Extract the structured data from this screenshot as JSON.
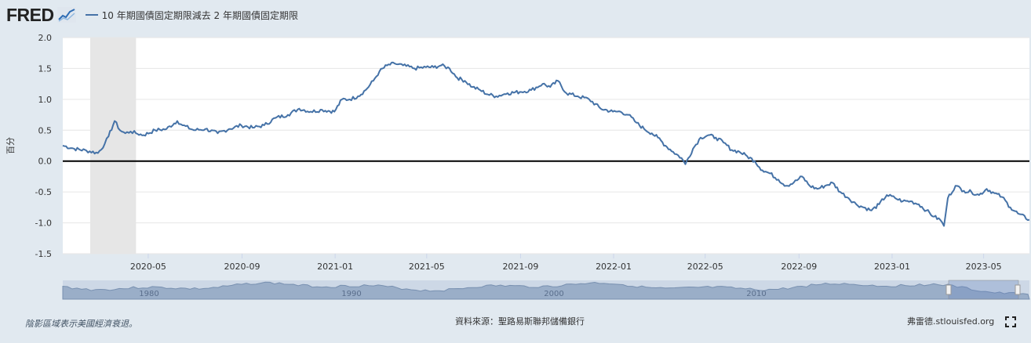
{
  "header": {
    "logo_text": "FRED",
    "logo_icon": "line-chart-icon",
    "series_title": "10 年期國債固定期限減去 2 年期國債固定期限"
  },
  "footer": {
    "recession_note": "陰影區域表示美國經濟衰退。",
    "source": "資料來源：聖路易斯聯邦儲備銀行",
    "site": "弗雷德.stlouisfed.org",
    "fullscreen_icon": "fullscreen-icon"
  },
  "colors": {
    "series": "#4572a7",
    "recession": "#e6e6e6",
    "zero_line": "#000000",
    "navigator_fill": "#9aaec8"
  },
  "chart_data": {
    "type": "line",
    "ylabel": "百分",
    "ylim": [
      -1.5,
      2.0
    ],
    "yticks": [
      "2.0",
      "1.5",
      "1.0",
      "0.5",
      "0.0",
      "-0.5",
      "-1.0",
      "-1.5"
    ],
    "xticks": [
      "2020-05",
      "2020-09",
      "2021-01",
      "2021-05",
      "2021-09",
      "2022-01",
      "2022-05",
      "2022-09",
      "2023-01",
      "2023-05"
    ],
    "xlim": [
      "2020-01-10",
      "2023-06-30"
    ],
    "grid": true,
    "legend": "top-left",
    "recession": {
      "start": "2020-02-15",
      "end": "2020-04-15"
    },
    "navigator_labels": [
      "1980",
      "1990",
      "2000",
      "2010"
    ],
    "series": [
      {
        "name": "10 年期國債固定期限減去 2 年期國債固定期限",
        "x": [
          "2020-01-10",
          "2020-01-25",
          "2020-02-10",
          "2020-02-25",
          "2020-03-05",
          "2020-03-10",
          "2020-03-18",
          "2020-03-25",
          "2020-04-01",
          "2020-04-08",
          "2020-04-15",
          "2020-04-25",
          "2020-05-10",
          "2020-05-25",
          "2020-06-08",
          "2020-06-15",
          "2020-06-30",
          "2020-07-15",
          "2020-07-31",
          "2020-08-15",
          "2020-08-31",
          "2020-09-15",
          "2020-09-30",
          "2020-10-15",
          "2020-10-31",
          "2020-11-15",
          "2020-11-30",
          "2020-12-15",
          "2020-12-31",
          "2021-01-10",
          "2021-01-20",
          "2021-01-31",
          "2021-02-10",
          "2021-02-20",
          "2021-02-28",
          "2021-03-10",
          "2021-03-20",
          "2021-03-31",
          "2021-04-15",
          "2021-04-30",
          "2021-05-10",
          "2021-05-20",
          "2021-05-31",
          "2021-06-10",
          "2021-06-20",
          "2021-06-30",
          "2021-07-10",
          "2021-07-20",
          "2021-07-31",
          "2021-08-15",
          "2021-08-31",
          "2021-09-15",
          "2021-09-30",
          "2021-10-10",
          "2021-10-20",
          "2021-10-31",
          "2021-11-15",
          "2021-11-30",
          "2021-12-15",
          "2021-12-31",
          "2022-01-10",
          "2022-01-20",
          "2022-01-31",
          "2022-02-10",
          "2022-02-20",
          "2022-02-28",
          "2022-03-10",
          "2022-03-20",
          "2022-03-31",
          "2022-04-05",
          "2022-04-15",
          "2022-04-25",
          "2022-05-05",
          "2022-05-15",
          "2022-05-25",
          "2022-06-05",
          "2022-06-15",
          "2022-06-25",
          "2022-07-05",
          "2022-07-15",
          "2022-07-25",
          "2022-08-05",
          "2022-08-15",
          "2022-08-25",
          "2022-09-05",
          "2022-09-15",
          "2022-09-25",
          "2022-10-05",
          "2022-10-15",
          "2022-10-25",
          "2022-11-05",
          "2022-11-15",
          "2022-11-25",
          "2022-12-05",
          "2022-12-15",
          "2022-12-25",
          "2023-01-05",
          "2023-01-15",
          "2023-01-25",
          "2023-02-05",
          "2023-02-15",
          "2023-02-25",
          "2023-03-05",
          "2023-03-10",
          "2023-03-15",
          "2023-03-25",
          "2023-04-05",
          "2023-04-15",
          "2023-04-25",
          "2023-05-05",
          "2023-05-15",
          "2023-05-25",
          "2023-06-05",
          "2023-06-15",
          "2023-06-30"
        ],
        "values": [
          0.25,
          0.2,
          0.17,
          0.13,
          0.28,
          0.4,
          0.65,
          0.5,
          0.45,
          0.48,
          0.45,
          0.42,
          0.5,
          0.52,
          0.65,
          0.58,
          0.5,
          0.52,
          0.45,
          0.52,
          0.58,
          0.54,
          0.58,
          0.7,
          0.75,
          0.85,
          0.8,
          0.83,
          0.8,
          1.0,
          1.0,
          1.05,
          1.15,
          1.3,
          1.45,
          1.55,
          1.58,
          1.55,
          1.5,
          1.52,
          1.52,
          1.55,
          1.5,
          1.35,
          1.3,
          1.2,
          1.15,
          1.08,
          1.05,
          1.1,
          1.12,
          1.15,
          1.25,
          1.2,
          1.3,
          1.1,
          1.05,
          1.0,
          0.85,
          0.8,
          0.8,
          0.75,
          0.62,
          0.52,
          0.45,
          0.38,
          0.25,
          0.15,
          0.05,
          -0.05,
          0.2,
          0.38,
          0.42,
          0.38,
          0.3,
          0.18,
          0.15,
          0.08,
          0.0,
          -0.15,
          -0.2,
          -0.3,
          -0.4,
          -0.35,
          -0.25,
          -0.4,
          -0.45,
          -0.4,
          -0.35,
          -0.5,
          -0.6,
          -0.7,
          -0.75,
          -0.8,
          -0.7,
          -0.55,
          -0.6,
          -0.65,
          -0.65,
          -0.7,
          -0.8,
          -0.9,
          -0.95,
          -1.05,
          -0.6,
          -0.4,
          -0.48,
          -0.5,
          -0.55,
          -0.45,
          -0.52,
          -0.58,
          -0.75,
          -0.85,
          -0.95
        ]
      }
    ]
  }
}
